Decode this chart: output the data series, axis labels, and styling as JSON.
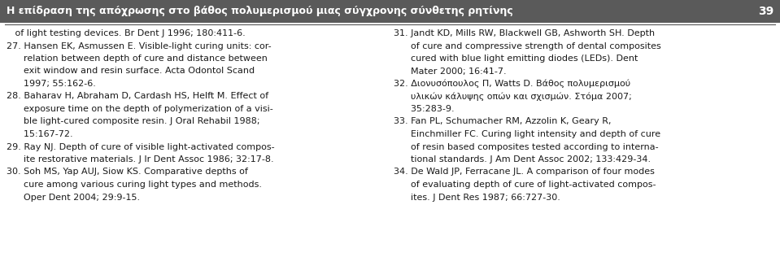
{
  "title": "Η επίδραση της απόχρωσης στο βάθος πολυμερισμού μιας σύγχρονης σύνθετης ρητίνης",
  "page_number": "39",
  "background_color": "#ffffff",
  "text_color": "#1a1a1a",
  "title_text_color": "#ffffff",
  "title_bg_color": "#5a5a5a",
  "line_color": "#555555",
  "left_column": [
    "   of light testing devices. Br Dent J 1996; 180:411-6.",
    "27. Hansen EK, Asmussen E. Visible-light curing units: cor-",
    "      relation between depth of cure and distance between",
    "      exit window and resin surface. Acta Odontol Scand",
    "      1997; 55:162-6.",
    "28. Baharav H, Abraham D, Cardash HS, Helft M. Effect of",
    "      exposure time on the depth of polymerization of a visi-",
    "      ble light-cured composite resin. J Oral Rehabil 1988;",
    "      15:167-72.",
    "29. Ray NJ. Depth of cure of visible light-activated compos-",
    "      ite restorative materials. J Ir Dent Assoc 1986; 32:17-8.",
    "30. Soh MS, Yap AUJ, Siow KS. Comparative depths of",
    "      cure among various curing light types and methods.",
    "      Oper Dent 2004; 29:9-15."
  ],
  "right_column": [
    "31. Jandt KD, Mills RW, Blackwell GB, Ashworth SH. Depth",
    "      of cure and compressive strength of dental composites",
    "      cured with blue light emitting diodes (LEDs). Dent",
    "      Mater 2000; 16:41-7.",
    "32. Διονυσόπουλος Π, Watts D. Βάθος πολυμερισμού",
    "      υλικών κάλυψης οπών και σχισμών. Στόμα 2007;",
    "      35:283-9.",
    "33. Fan PL, Schumacher RM, Azzolin K, Geary R,",
    "      Einchmiller FC. Curing light intensity and depth of cure",
    "      of resin based composites tested according to interna-",
    "      tional standards. J Am Dent Assoc 2002; 133:429-34.",
    "34. De Wald JP, Ferracane JL. A comparison of four modes",
    "      of evaluating depth of cure of light-activated compos-",
    "      ites. J Dent Res 1987; 66:727-30."
  ],
  "font_size": 8.0,
  "title_font_size": 9.0,
  "page_num_font_size": 10.0,
  "figwidth": 9.59,
  "figheight": 3.43,
  "dpi": 100
}
